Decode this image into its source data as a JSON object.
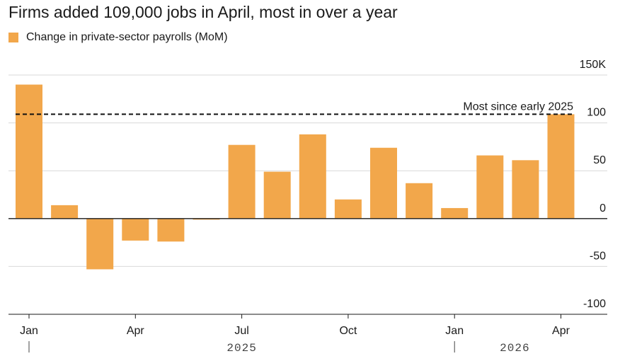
{
  "chart_data": {
    "type": "bar",
    "title": "Firms added 109,000 jobs in April, most in over a year",
    "legend": "Change in private-sector payrolls (MoM)",
    "bar_color": "#f2a74b",
    "categories": [
      "Jan 2025",
      "Feb 2025",
      "Mar 2025",
      "Apr 2025",
      "May 2025",
      "Jun 2025",
      "Jul 2025",
      "Aug 2025",
      "Sep 2025",
      "Oct 2025",
      "Nov 2025",
      "Dec 2025",
      "Jan 2026",
      "Feb 2026",
      "Mar 2026",
      "Apr 2026"
    ],
    "values": [
      140,
      14,
      -53,
      -23,
      -24,
      -1,
      77,
      49,
      88,
      20,
      74,
      37,
      11,
      66,
      61,
      109
    ],
    "ylim": [
      -100,
      150
    ],
    "yticks": [
      {
        "value": 150,
        "label": "150K"
      },
      {
        "value": 100,
        "label": "100"
      },
      {
        "value": 50,
        "label": "50"
      },
      {
        "value": 0,
        "label": "0"
      },
      {
        "value": -50,
        "label": "-50"
      },
      {
        "value": -100,
        "label": "-100"
      }
    ],
    "xticks": [
      {
        "index": 0,
        "label": "Jan"
      },
      {
        "index": 3,
        "label": "Apr"
      },
      {
        "index": 6,
        "label": "Jul"
      },
      {
        "index": 9,
        "label": "Oct"
      },
      {
        "index": 12,
        "label": "Jan"
      },
      {
        "index": 15,
        "label": "Apr"
      }
    ],
    "year_labels": [
      {
        "label": "2025",
        "center_index": 6
      },
      {
        "label": "2026",
        "center_index": 13.7
      }
    ],
    "year_dividers": [
      0,
      12
    ],
    "reference_line": {
      "value": 109,
      "label": "Most since early 2025",
      "style": "dashed"
    },
    "grid": true
  }
}
